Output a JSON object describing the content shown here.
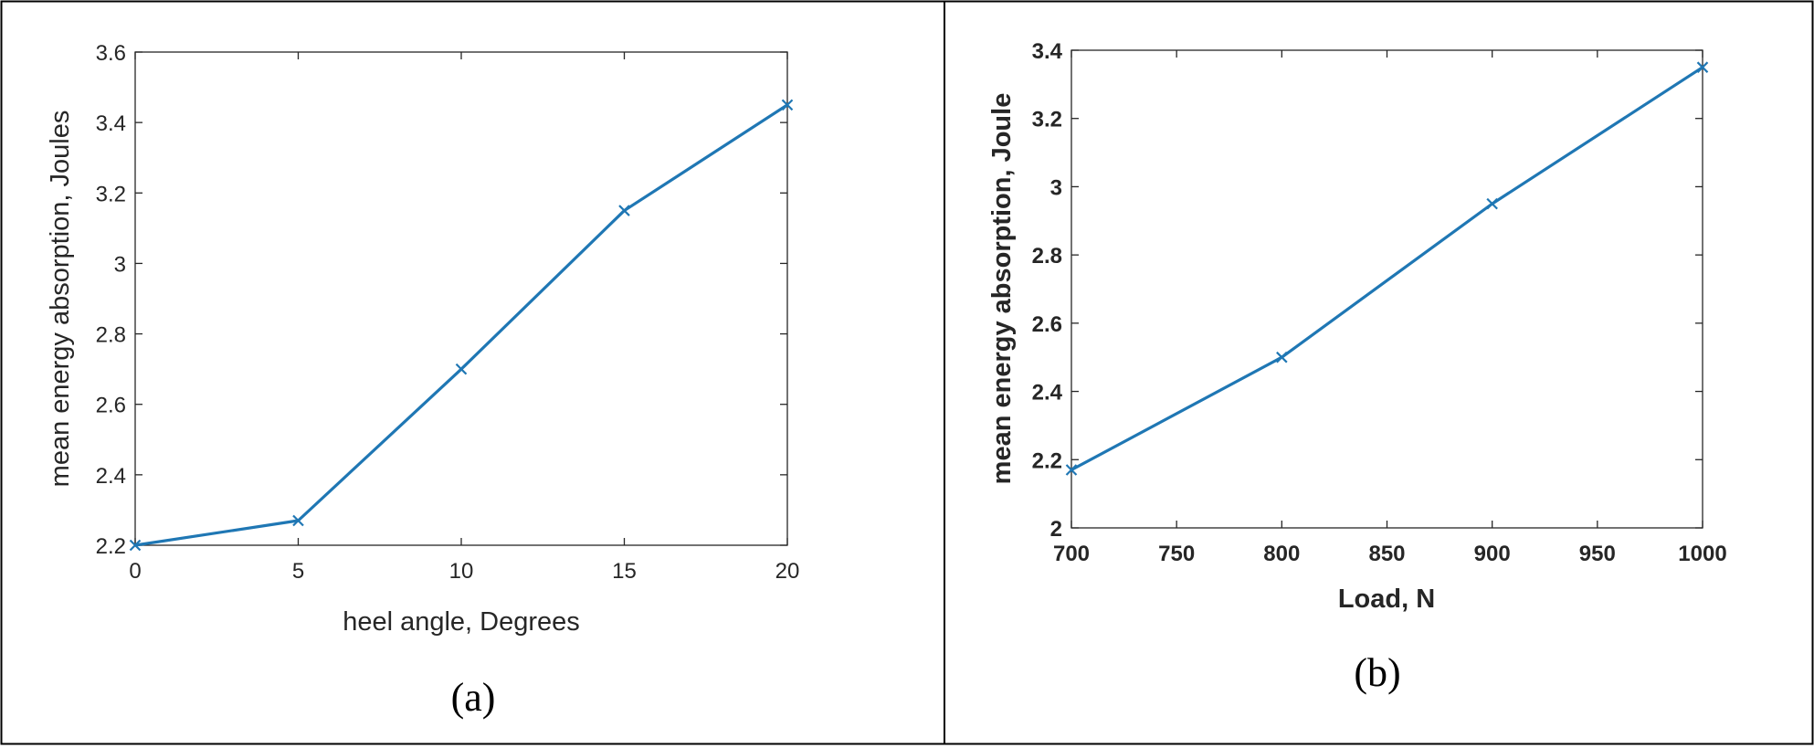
{
  "style": {
    "line_color": "#1f77b4",
    "axis_color": "#262626",
    "border_color": "#000000"
  },
  "chart_data": [
    {
      "type": "line",
      "caption": "(a)",
      "xlabel": "heel angle, Degrees",
      "ylabel": "mean energy absorption, Joules",
      "xlim": [
        0,
        20
      ],
      "ylim": [
        2.2,
        3.6
      ],
      "xticks": [
        "0",
        "5",
        "10",
        "15",
        "20"
      ],
      "yticks": [
        "2.2",
        "2.4",
        "2.6",
        "2.8",
        "3",
        "3.2",
        "3.4",
        "3.6"
      ],
      "marker": "x",
      "grid": false,
      "series": [
        {
          "x": [
            0,
            5,
            10,
            15,
            20
          ],
          "y": [
            2.2,
            2.27,
            2.7,
            3.15,
            3.45
          ]
        }
      ]
    },
    {
      "type": "line",
      "caption": "(b)",
      "xlabel": "Load, N",
      "ylabel": "mean energy absorption, Joule",
      "xlim": [
        700,
        1000
      ],
      "ylim": [
        2,
        3.4
      ],
      "xticks": [
        "700",
        "750",
        "800",
        "850",
        "900",
        "950",
        "1000"
      ],
      "yticks": [
        "2",
        "2.2",
        "2.4",
        "2.6",
        "2.8",
        "3",
        "3.2",
        "3.4"
      ],
      "marker": "x",
      "grid": false,
      "bold_labels": true,
      "series": [
        {
          "x": [
            700,
            800,
            900,
            1000
          ],
          "y": [
            2.17,
            2.5,
            2.95,
            3.35
          ]
        }
      ]
    }
  ]
}
